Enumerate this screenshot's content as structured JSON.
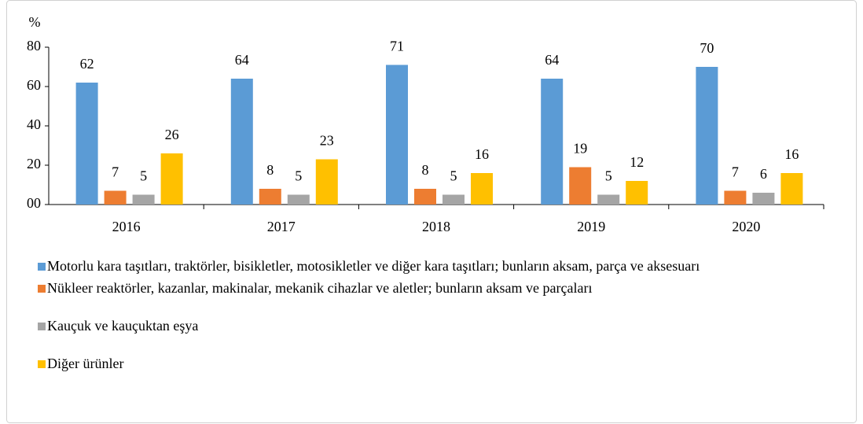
{
  "chart_data": {
    "type": "bar",
    "ylabel": "%",
    "categories": [
      "2016",
      "2017",
      "2018",
      "2019",
      "2020"
    ],
    "series": [
      {
        "name": "Motorlu kara taşıtları, traktörler, bisikletler, motosikletler ve diğer kara taşıtları; bunların aksam, parça ve aksesuarı",
        "color": "#5b9bd5",
        "values": [
          62,
          64,
          71,
          64,
          70
        ]
      },
      {
        "name": "Nükleer reaktörler, kazanlar, makinalar, mekanik cihazlar ve  aletler; bunların aksam ve parçaları",
        "color": "#ed7d31",
        "values": [
          7,
          8,
          8,
          19,
          7
        ]
      },
      {
        "name": "Kauçuk ve kauçuktan eşya",
        "color": "#a5a5a5",
        "values": [
          5,
          5,
          5,
          5,
          6
        ]
      },
      {
        "name": "Diğer ürünler",
        "color": "#ffc000",
        "values": [
          26,
          23,
          16,
          12,
          16
        ]
      }
    ],
    "ylim": [
      0,
      80
    ],
    "yticks": [
      {
        "value": 0,
        "label": "00"
      },
      20,
      40,
      60,
      80
    ],
    "legend": "bottom",
    "grid": false
  }
}
